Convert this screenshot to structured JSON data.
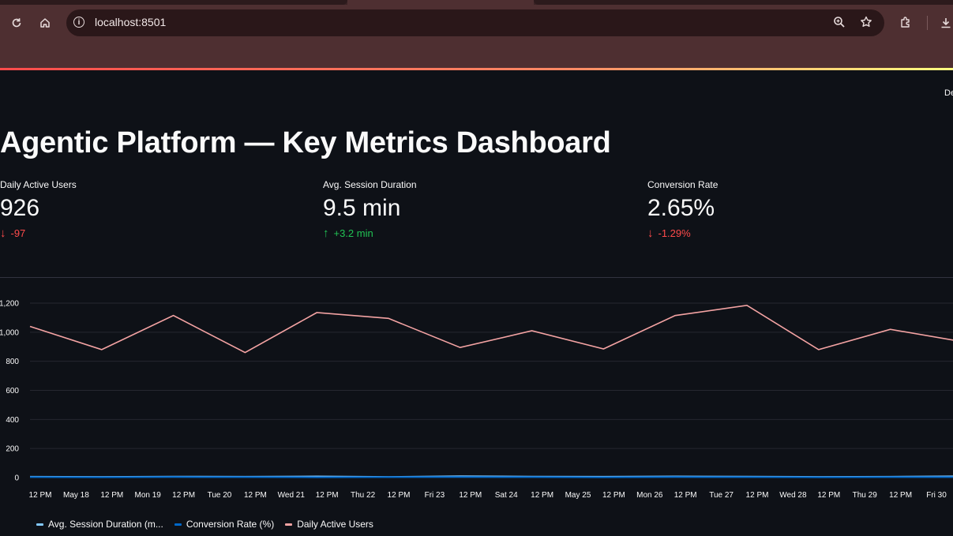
{
  "browser": {
    "url": "localhost:8501",
    "icons": [
      "reload-icon",
      "home-icon",
      "info-icon",
      "zoom-icon",
      "star-icon",
      "extensions-icon",
      "download-icon"
    ]
  },
  "app": {
    "deploy_label": "De",
    "title": "Agentic Platform — Key Metrics Dashboard"
  },
  "metrics": [
    {
      "label": "Daily Active Users",
      "value": "926",
      "delta": "-97",
      "direction": "down"
    },
    {
      "label": "Avg. Session Duration",
      "value": "9.5 min",
      "delta": "+3.2 min",
      "direction": "up"
    },
    {
      "label": "Conversion Rate",
      "value": "2.65%",
      "delta": "-1.29%",
      "direction": "down"
    }
  ],
  "colors": {
    "background": "#0e1117",
    "negative": "#ff4b4b",
    "positive": "#21c354",
    "dau_line": "#f4a3a3",
    "session_line": "#83c9ff",
    "conversion_line": "#0068c9"
  },
  "chart_data": {
    "type": "line",
    "x": [
      "May 17 12 PM",
      "May 18 12 PM",
      "May 19 12 PM",
      "May 20 12 PM",
      "May 21 12 PM",
      "May 22 12 PM",
      "May 23 12 PM",
      "May 24 12 PM",
      "May 25 12 PM",
      "May 26 12 PM",
      "May 27 12 PM",
      "May 28 12 PM",
      "May 29 12 PM",
      "May 30 12 PM"
    ],
    "x_tick_labels": [
      "12 PM",
      "May 18",
      "12 PM",
      "Mon 19",
      "12 PM",
      "Tue 20",
      "12 PM",
      "Wed 21",
      "12 PM",
      "Thu 22",
      "12 PM",
      "Fri 23",
      "12 PM",
      "Sat 24",
      "12 PM",
      "May 25",
      "12 PM",
      "Mon 26",
      "12 PM",
      "Tue 27",
      "12 PM",
      "Wed 28",
      "12 PM",
      "Thu 29",
      "12 PM",
      "Fri 30"
    ],
    "y_tick_labels": [
      "0",
      "200",
      "400",
      "600",
      "800",
      "1,000",
      "1,200"
    ],
    "ylim": [
      0,
      1200
    ],
    "grid": true,
    "legend": "bottom-left",
    "series": [
      {
        "name": "Avg. Session Duration (m...",
        "color": "#83c9ff",
        "values": [
          6,
          5,
          7,
          6,
          8,
          5,
          9,
          7,
          6,
          8,
          7,
          5,
          6,
          9
        ]
      },
      {
        "name": "Conversion Rate (%)",
        "color": "#0068c9",
        "values": [
          3,
          2,
          4,
          3,
          2,
          3,
          4,
          3,
          2,
          4,
          3,
          2,
          3,
          3
        ]
      },
      {
        "name": "Daily Active Users",
        "color": "#f4a3a3",
        "values": [
          1040,
          880,
          1115,
          860,
          1135,
          1095,
          895,
          1010,
          885,
          1115,
          1185,
          880,
          1020,
          935
        ]
      }
    ]
  }
}
